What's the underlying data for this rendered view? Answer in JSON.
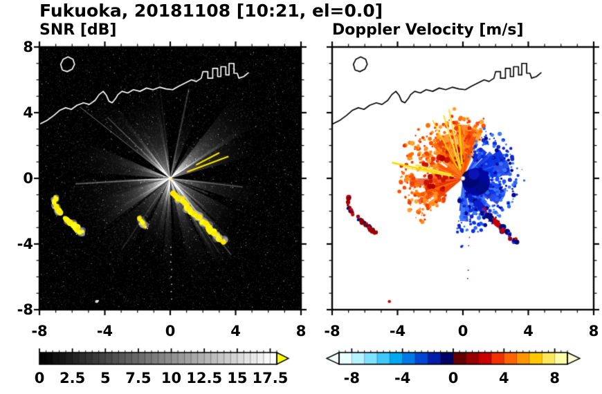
{
  "title": "Fukuoka, 20181108 [10:21, el=0.0]",
  "panels": {
    "snr": {
      "label": "SNR [dB]",
      "x_ticks": [
        {
          "label": "-8",
          "value": -8
        },
        {
          "label": "-4",
          "value": -4
        },
        {
          "label": "0",
          "value": 0
        },
        {
          "label": "4",
          "value": 4
        },
        {
          "label": "8",
          "value": 8
        }
      ],
      "y_ticks": [
        {
          "label": "8",
          "value": 8
        },
        {
          "label": "4",
          "value": 4
        },
        {
          "label": "0",
          "value": 0
        },
        {
          "label": "-4",
          "value": -4
        },
        {
          "label": "-8",
          "value": -8
        }
      ],
      "colorbar": {
        "unit": "dB",
        "range": [
          0,
          18
        ],
        "tick_labels": [
          {
            "label": "0",
            "value": 0
          },
          {
            "label": "2.5",
            "value": 2.5
          },
          {
            "label": "5",
            "value": 5
          },
          {
            "label": "7.5",
            "value": 7.5
          },
          {
            "label": "10",
            "value": 10
          },
          {
            "label": "12.5",
            "value": 12.5
          },
          {
            "label": "15",
            "value": 15
          },
          {
            "label": "17.5",
            "value": 17.5
          }
        ],
        "colormap": "grayscale-black-to-white",
        "over_arrow_color": "#ffff00"
      }
    },
    "velocity": {
      "label": "Doppler Velocity [m/s]",
      "x_ticks": [
        {
          "label": "-8",
          "value": -8
        },
        {
          "label": "-4",
          "value": -4
        },
        {
          "label": "0",
          "value": 0
        },
        {
          "label": "4",
          "value": 4
        },
        {
          "label": "8",
          "value": 8
        }
      ],
      "colorbar": {
        "unit": "m/s",
        "range": [
          -9,
          9
        ],
        "tick_labels": [
          {
            "label": "-8",
            "value": -8
          },
          {
            "label": "-4",
            "value": -4
          },
          {
            "label": "0",
            "value": 0
          },
          {
            "label": "4",
            "value": 4
          },
          {
            "label": "8",
            "value": 8
          }
        ],
        "colormap": "diverging cyan-blue-navy (toward) to darkred-orange-yellow (away)",
        "under_arrow_color": "#f4ffff",
        "over_arrow_color": "#ffffd2",
        "segment_colors_negative": [
          "#eaffff",
          "#b6f2ff",
          "#7ce2ff",
          "#40c8fa",
          "#00a8f0",
          "#0078e6",
          "#0046d2",
          "#001eaa",
          "#000064"
        ],
        "segment_colors_positive": [
          "#640000",
          "#960000",
          "#c80000",
          "#f03200",
          "#ff6400",
          "#ff9600",
          "#ffc800",
          "#ffe65a",
          "#ffffaa"
        ]
      }
    }
  },
  "features": {
    "radar_center": [
      0,
      0
    ],
    "coastline": [
      [
        [
          -8,
          3.3
        ],
        [
          -7.5,
          3.55
        ],
        [
          -7.1,
          3.85
        ],
        [
          -6.75,
          4.15
        ],
        [
          -6.4,
          4.3
        ],
        [
          -6.05,
          4.2
        ],
        [
          -5.7,
          4.45
        ],
        [
          -5.3,
          4.6
        ],
        [
          -4.95,
          4.5
        ],
        [
          -4.6,
          4.75
        ],
        [
          -4.35,
          5.1
        ],
        [
          -4.1,
          5.3
        ],
        [
          -3.9,
          5.05
        ],
        [
          -3.75,
          4.7
        ],
        [
          -3.55,
          4.6
        ],
        [
          -3.35,
          4.85
        ],
        [
          -3.2,
          5.1
        ],
        [
          -2.95,
          5.3
        ],
        [
          -2.6,
          5.2
        ],
        [
          -2.25,
          5.4
        ],
        [
          -1.85,
          5.3
        ],
        [
          -1.45,
          5.5
        ],
        [
          -1.05,
          5.4
        ],
        [
          -0.65,
          5.55
        ],
        [
          -0.25,
          5.45
        ],
        [
          0.15,
          5.4
        ],
        [
          0.5,
          5.6
        ],
        [
          0.9,
          5.8
        ],
        [
          1.3,
          6.0
        ],
        [
          1.6,
          5.9
        ],
        [
          1.9,
          6.1
        ],
        [
          2.0,
          6.5
        ],
        [
          2.3,
          6.5
        ],
        [
          2.3,
          6.1
        ],
        [
          2.6,
          6.1
        ],
        [
          2.6,
          6.7
        ],
        [
          2.9,
          6.7
        ],
        [
          2.9,
          6.2
        ],
        [
          3.1,
          6.2
        ],
        [
          3.1,
          6.8
        ],
        [
          3.4,
          6.8
        ],
        [
          3.4,
          6.3
        ],
        [
          3.6,
          6.3
        ],
        [
          3.6,
          7.0
        ],
        [
          3.9,
          7.0
        ],
        [
          3.9,
          6.4
        ],
        [
          4.1,
          6.4
        ],
        [
          4.2,
          6.1
        ],
        [
          4.5,
          6.2
        ],
        [
          4.8,
          6.45
        ]
      ],
      [
        [
          -6.6,
          6.6
        ],
        [
          -6.3,
          6.5
        ],
        [
          -6.0,
          6.65
        ],
        [
          -5.85,
          6.95
        ],
        [
          -5.95,
          7.25
        ],
        [
          -6.25,
          7.4
        ],
        [
          -6.55,
          7.25
        ],
        [
          -6.7,
          6.95
        ],
        [
          -6.6,
          6.6
        ]
      ]
    ],
    "clutter_arcs": [
      [
        [
          -7.0,
          -1.1
        ],
        [
          -7.1,
          -1.5
        ],
        [
          -6.9,
          -1.9
        ],
        [
          -6.7,
          -2.2
        ]
      ],
      [
        [
          -6.4,
          -2.4
        ],
        [
          -6.1,
          -2.7
        ],
        [
          -5.8,
          -2.9
        ],
        [
          -5.6,
          -3.2
        ],
        [
          -5.3,
          -3.3
        ]
      ],
      [
        [
          0.2,
          -0.9
        ],
        [
          0.5,
          -1.2
        ],
        [
          0.8,
          -1.4
        ],
        [
          1.0,
          -1.7
        ],
        [
          1.2,
          -2.0
        ],
        [
          1.5,
          -2.2
        ],
        [
          1.8,
          -2.4
        ],
        [
          2.0,
          -2.7
        ],
        [
          2.3,
          -2.9
        ],
        [
          2.5,
          -3.2
        ],
        [
          2.8,
          -3.4
        ],
        [
          3.0,
          -3.7
        ],
        [
          3.3,
          -3.9
        ]
      ],
      [
        [
          -1.9,
          -2.4
        ],
        [
          -1.7,
          -2.7
        ],
        [
          -1.5,
          -3.0
        ]
      ]
    ],
    "isolated_speck": [
      -4.5,
      -7.5
    ]
  },
  "chart_data": [
    {
      "type": "heatmap",
      "title": "SNR [dB]",
      "xlabel": "",
      "ylabel": "",
      "xlim": [
        -8,
        8
      ],
      "ylim": [
        -8,
        8
      ],
      "x_ticks": [
        -8,
        -4,
        0,
        4,
        8
      ],
      "y_ticks": [
        -8,
        -4,
        0,
        4,
        8
      ],
      "colorbar_range": [
        0,
        18
      ],
      "colorbar_ticks": [
        0,
        2.5,
        5,
        7.5,
        10,
        12.5,
        15,
        17.5
      ],
      "colormap": "grayscale black to white with yellow over-range arrow",
      "content": "Radar SNR PPI: black noise-speckle background, gray radial beam sectors emanating from the radar at the origin, strong yellow clutter arcs near (-7,-1.5), (-5.7,-3) and along a band from (0.2,-0.9) to (3.3,-3.9), white coastline across the top with harbor block structures near x=2..4, y=6..7 and a small island near (-6.3,6.9)"
    },
    {
      "type": "heatmap",
      "title": "Doppler Velocity [m/s]",
      "xlabel": "",
      "ylabel": "",
      "xlim": [
        -8,
        8
      ],
      "ylim": [
        -8,
        8
      ],
      "x_ticks": [
        -8,
        -4,
        0,
        4,
        8
      ],
      "y_ticks": [
        -8,
        -4,
        0,
        4,
        8
      ],
      "colorbar_range": [
        -9,
        9
      ],
      "colorbar_ticks": [
        -8,
        -4,
        0,
        4,
        8
      ],
      "colormap": "diverging: pale cyan to navy (negative/toward) and dark red to pale yellow (positive/away), arrows both ends",
      "content": "Doppler velocity PPI on white background: outbound orange/red fan with yellow streaks north-to-west of the radar, inbound blue echo with dark navy core east/southeast of the radar, scattered red and navy clutter echoes southwest matching the SNR clutter arcs, black coastline"
    }
  ]
}
